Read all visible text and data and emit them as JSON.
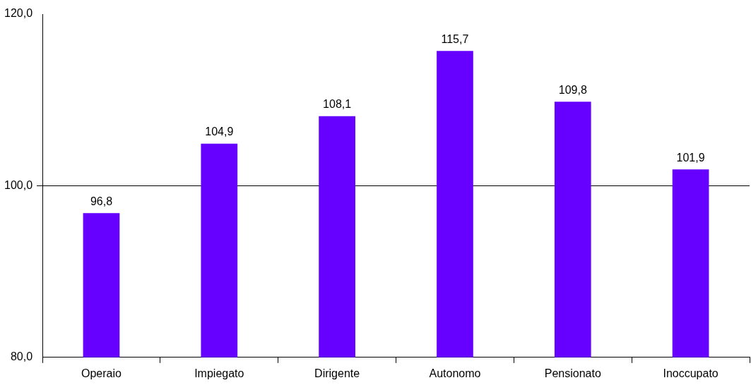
{
  "chart_data": {
    "type": "bar",
    "categories": [
      "Operaio",
      "Impiegato",
      "Dirigente",
      "Autonomo",
      "Pensionato",
      "Inoccupato"
    ],
    "values": [
      96.8,
      104.9,
      108.1,
      115.7,
      109.8,
      101.9
    ],
    "value_labels": [
      "96,8",
      "104,9",
      "108,1",
      "115,7",
      "109,8",
      "101,9"
    ],
    "color": "#6600ff",
    "ylim": [
      80,
      120
    ],
    "yticks": [
      {
        "value": 80,
        "label": "80,0"
      },
      {
        "value": 100,
        "label": "100,0"
      },
      {
        "value": 120,
        "label": "120,0"
      }
    ],
    "grid": "y",
    "legend": false
  }
}
